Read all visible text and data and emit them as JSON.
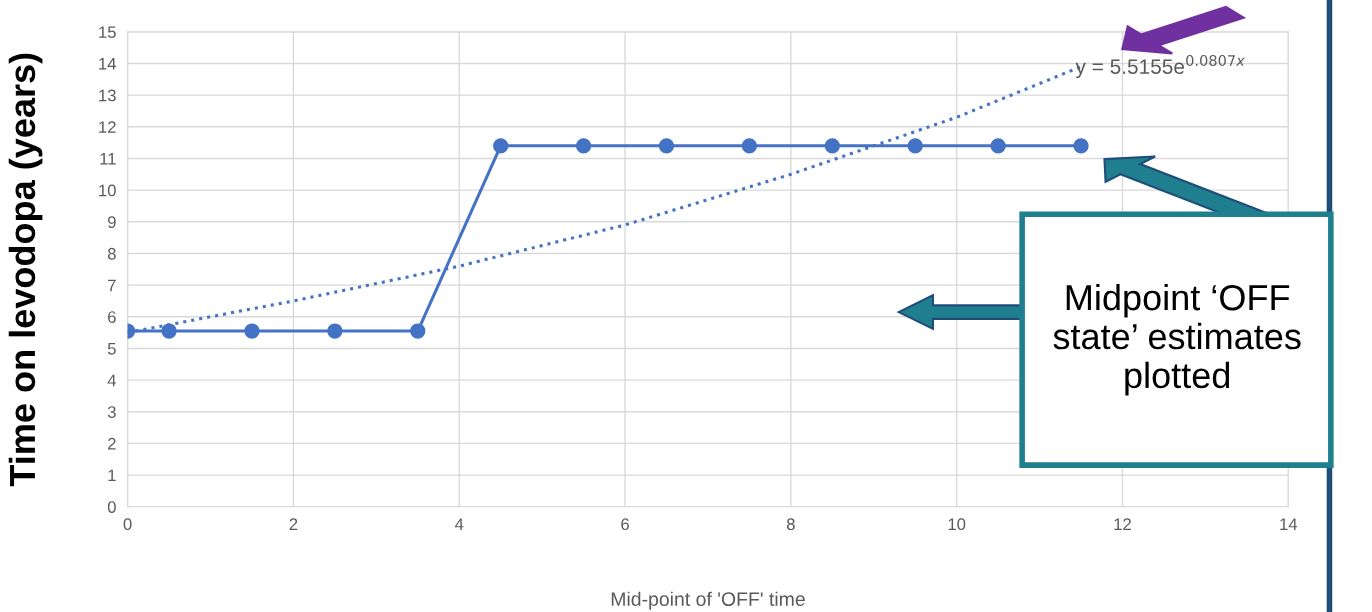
{
  "chart_data": {
    "type": "line",
    "xlabel": "Mid-point of 'OFF' time",
    "ylabel": "Time on levodopa (years)",
    "xlim": [
      0,
      14
    ],
    "xticks": [
      0,
      2,
      4,
      6,
      8,
      10,
      12,
      14
    ],
    "ylim": [
      0,
      15
    ],
    "yticks": [
      0,
      1,
      2,
      3,
      4,
      5,
      6,
      7,
      8,
      9,
      10,
      11,
      12,
      13,
      14,
      15
    ],
    "grid": true,
    "series": [
      {
        "color": "#4472c4",
        "marker": "circle",
        "line_style": "solid",
        "x": [
          0,
          0.5,
          1.5,
          2.5,
          3.5,
          4.5,
          5.5,
          6.5,
          7.5,
          8.5,
          9.5,
          10.5,
          11.5
        ],
        "values": [
          5.55,
          5.55,
          5.55,
          5.55,
          5.55,
          11.4,
          11.4,
          11.4,
          11.4,
          11.4,
          11.4,
          11.4,
          11.4
        ]
      },
      {
        "color": "#4472c4",
        "marker": "none",
        "line_style": "dotted",
        "x": [
          0,
          2,
          4,
          6,
          8,
          10,
          11.5
        ],
        "values": [
          5.5,
          6.5,
          7.6,
          8.9,
          10.5,
          12.3,
          13.9
        ]
      }
    ],
    "annotations": [
      {
        "text": "y = 5.5155e$^{0.0807x}$",
        "x": 11.5,
        "y": 13.9
      },
      "Midpoint ‘OFF state’ estimates plotted"
    ]
  }
}
